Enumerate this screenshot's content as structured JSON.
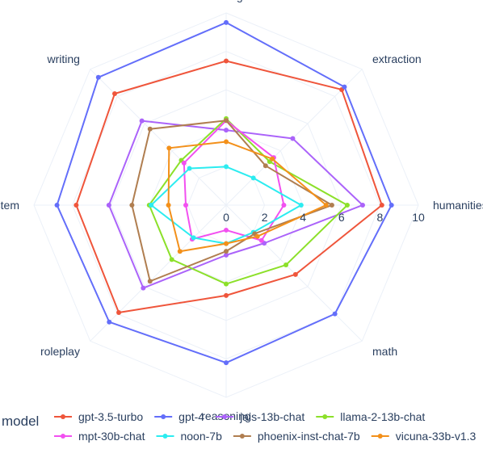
{
  "chart_data": {
    "type": "radar",
    "categories": [
      "coding",
      "extraction",
      "humanities",
      "math",
      "reasoning",
      "roleplay",
      "stem",
      "writing"
    ],
    "radial_range": [
      0,
      10
    ],
    "radial_ticks": [
      0,
      2,
      4,
      6,
      8,
      10
    ],
    "legend_title": "model",
    "legend_position": "bottom",
    "series": [
      {
        "name": "gpt-3.5-turbo",
        "color": "#ef553b",
        "values": [
          7.5,
          8.5,
          8.1,
          5.1,
          4.7,
          7.9,
          7.8,
          8.2
        ]
      },
      {
        "name": "gpt-4",
        "color": "#636efa",
        "values": [
          9.5,
          8.7,
          8.6,
          8.0,
          8.2,
          8.6,
          8.8,
          9.4
        ]
      },
      {
        "name": "jais-13b-chat",
        "color": "#ab63fa",
        "values": [
          3.9,
          4.9,
          7.1,
          2.8,
          2.6,
          6.1,
          6.1,
          6.2
        ]
      },
      {
        "name": "llama-2-13b-chat",
        "color": "#8ce02a",
        "values": [
          4.5,
          3.2,
          6.3,
          4.4,
          4.1,
          4.0,
          4.0,
          3.3
        ]
      },
      {
        "name": "mpt-30b-chat",
        "color": "#f250f0",
        "values": [
          4.4,
          3.5,
          3.0,
          2.6,
          1.3,
          2.5,
          2.1,
          3.1
        ]
      },
      {
        "name": "noon-7b",
        "color": "#2cecf0",
        "values": [
          2.0,
          2.0,
          3.9,
          2.0,
          2.0,
          2.4,
          3.9,
          2.7
        ]
      },
      {
        "name": "phoenix-inst-chat-7b",
        "color": "#b07e50",
        "values": [
          4.4,
          2.9,
          5.5,
          2.1,
          2.4,
          5.6,
          4.9,
          5.6
        ]
      },
      {
        "name": "vicuna-33b-v1.3",
        "color": "#f3901a",
        "values": [
          3.3,
          3.4,
          5.2,
          2.3,
          2.0,
          3.4,
          3.0,
          4.2
        ]
      }
    ]
  }
}
